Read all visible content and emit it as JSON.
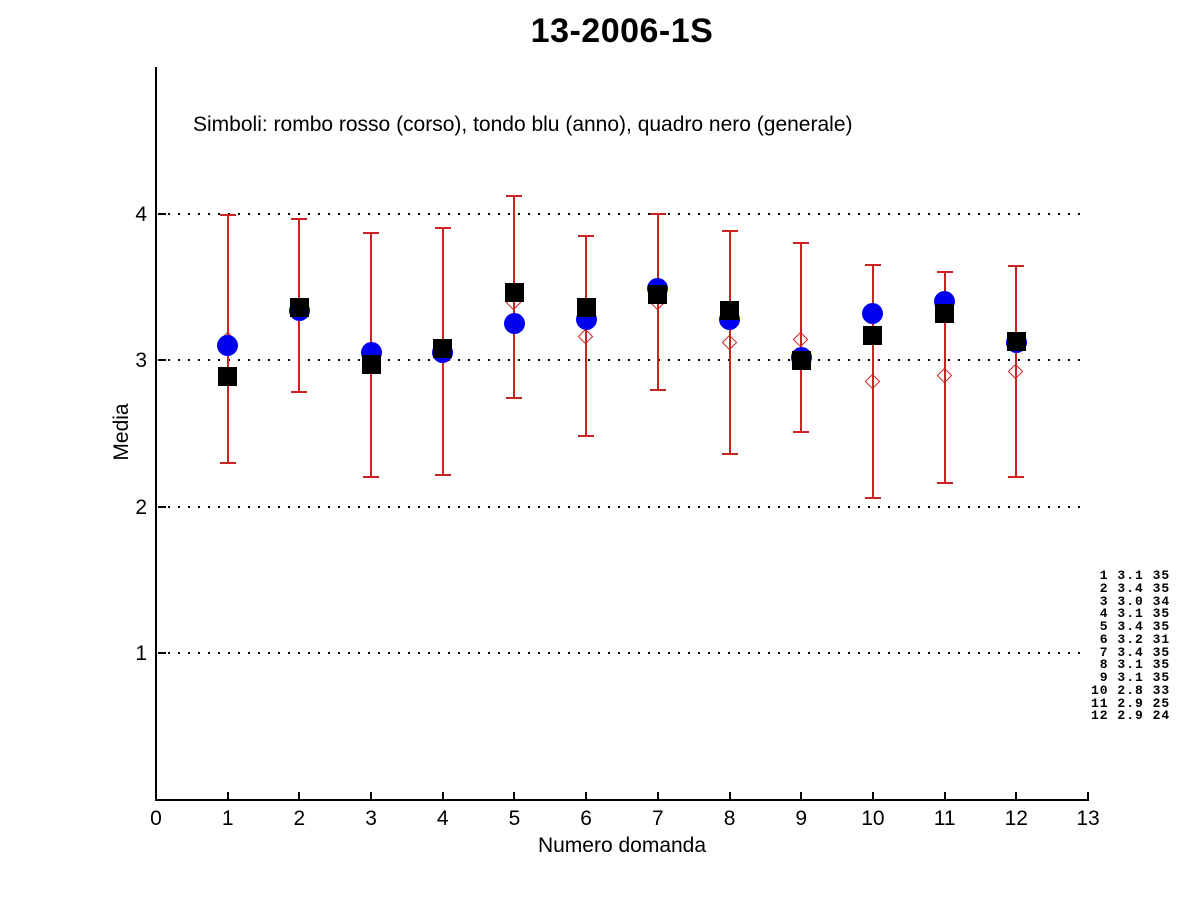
{
  "figure": {
    "title": "13-2006-1S",
    "subtitle": "Simboli: rombo rosso (corso), tondo blu (anno), quadro nero (generale)",
    "xlabel": "Numero domanda",
    "ylabel": "Media"
  },
  "chart_data": {
    "type": "scatter",
    "title": "13-2006-1S",
    "subtitle": "Simboli: rombo rosso (corso), tondo blu (anno), quadro nero (generale)",
    "xlabel": "Numero domanda",
    "ylabel": "Media",
    "xlim": [
      0,
      13
    ],
    "ylim": [
      0,
      5
    ],
    "x_ticks": [
      0,
      1,
      2,
      3,
      4,
      5,
      6,
      7,
      8,
      9,
      10,
      11,
      12,
      13
    ],
    "y_ticks": [
      1,
      2,
      3,
      4
    ],
    "grid": "horizontal dotted lines at y ticks",
    "legend_position": "text note inside plot, top-left",
    "x": [
      1,
      2,
      3,
      4,
      5,
      6,
      7,
      8,
      9,
      10,
      11,
      12
    ],
    "series": [
      {
        "name": "corso",
        "marker": "open-diamond",
        "color": "#cc2222",
        "values": [
          3.14,
          3.37,
          3.02,
          3.08,
          3.39,
          3.16,
          3.39,
          3.12,
          3.14,
          2.85,
          2.89,
          2.92
        ],
        "err_high": [
          3.99,
          3.96,
          3.87,
          3.9,
          4.12,
          3.85,
          4.0,
          3.88,
          3.8,
          3.65,
          3.6,
          3.64
        ],
        "err_low": [
          2.3,
          2.78,
          2.2,
          2.22,
          2.74,
          2.48,
          2.8,
          2.36,
          2.51,
          2.06,
          2.16,
          2.2
        ]
      },
      {
        "name": "anno",
        "marker": "filled-circle",
        "color": "#0000ee",
        "values": [
          3.1,
          3.34,
          3.05,
          3.05,
          3.25,
          3.28,
          3.49,
          3.28,
          3.02,
          3.32,
          3.4,
          3.12
        ]
      },
      {
        "name": "generale",
        "marker": "filled-square",
        "color": "#000000",
        "values": [
          2.89,
          3.36,
          2.97,
          3.08,
          3.46,
          3.36,
          3.45,
          3.34,
          3.0,
          3.17,
          3.32,
          3.13
        ]
      }
    ],
    "annotation_table": {
      "rows": [
        [
          1,
          "3.1",
          35
        ],
        [
          2,
          "3.4",
          35
        ],
        [
          3,
          "3.0",
          34
        ],
        [
          4,
          "3.1",
          35
        ],
        [
          5,
          "3.4",
          35
        ],
        [
          6,
          "3.2",
          31
        ],
        [
          7,
          "3.4",
          35
        ],
        [
          8,
          "3.1",
          35
        ],
        [
          9,
          "3.1",
          35
        ],
        [
          10,
          "2.8",
          33
        ],
        [
          11,
          "2.9",
          25
        ],
        [
          12,
          "2.9",
          24
        ]
      ]
    }
  },
  "colors": {
    "corso": "#cc2222",
    "anno": "#0000ee",
    "generale": "#000000",
    "axis": "#000000",
    "grid": "#000000",
    "background": "#ffffff"
  }
}
